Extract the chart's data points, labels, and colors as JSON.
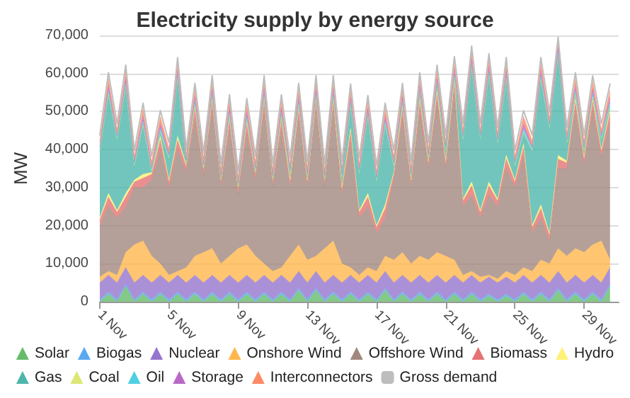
{
  "chart_data": {
    "type": "area",
    "title": "Electricity supply by energy source",
    "ylabel": "MW",
    "stacked": true,
    "grid": "y",
    "legend": "bottom",
    "marker": "none",
    "ylim": [
      0,
      70000
    ],
    "yticks": [
      0,
      {
        "value": 10000,
        "label": "10,000"
      },
      {
        "value": 20000,
        "label": "20,000"
      },
      {
        "value": 30000,
        "label": "30,000"
      },
      {
        "value": 40000,
        "label": "40,000"
      },
      {
        "value": 50000,
        "label": "50,000"
      },
      {
        "value": 60000,
        "label": "60,000"
      },
      {
        "value": 70000,
        "label": "70,000"
      }
    ],
    "xlim": [
      "--11-01",
      "--12-01"
    ],
    "xticks": [
      {
        "value": "--11-01",
        "label": "1 Nov"
      },
      {
        "value": "--11-05",
        "label": "5 Nov"
      },
      {
        "value": "--11-09",
        "label": "9 Nov"
      },
      {
        "value": "--11-13",
        "label": "13 Nov"
      },
      {
        "value": "--11-17",
        "label": "17 Nov"
      },
      {
        "value": "--11-21",
        "label": "21 Nov"
      },
      {
        "value": "--11-25",
        "label": "25 Nov"
      },
      {
        "value": "--11-29",
        "label": "29 Nov"
      }
    ],
    "x": [
      "--11-01T00:00",
      "--11-01T12:00",
      "--11-02T00:00",
      "--11-02T12:00",
      "--11-03T00:00",
      "--11-03T12:00",
      "--11-04T00:00",
      "--11-04T12:00",
      "--11-05T00:00",
      "--11-05T12:00",
      "--11-06T00:00",
      "--11-06T12:00",
      "--11-07T00:00",
      "--11-07T12:00",
      "--11-08T00:00",
      "--11-08T12:00",
      "--11-09T00:00",
      "--11-09T12:00",
      "--11-10T00:00",
      "--11-10T12:00",
      "--11-11T00:00",
      "--11-11T12:00",
      "--11-12T00:00",
      "--11-12T12:00",
      "--11-13T00:00",
      "--11-13T12:00",
      "--11-14T00:00",
      "--11-14T12:00",
      "--11-15T00:00",
      "--11-15T12:00",
      "--11-16T00:00",
      "--11-16T12:00",
      "--11-17T00:00",
      "--11-17T12:00",
      "--11-18T00:00",
      "--11-18T12:00",
      "--11-19T00:00",
      "--11-19T12:00",
      "--11-20T00:00",
      "--11-20T12:00",
      "--11-21T00:00",
      "--11-21T12:00",
      "--11-22T00:00",
      "--11-22T12:00",
      "--11-23T00:00",
      "--11-23T12:00",
      "--11-24T00:00",
      "--11-24T12:00",
      "--11-25T00:00",
      "--11-25T12:00",
      "--11-26T00:00",
      "--11-26T12:00",
      "--11-27T00:00",
      "--11-27T12:00",
      "--11-28T00:00",
      "--11-28T12:00",
      "--11-29T00:00",
      "--11-29T12:00",
      "--11-30T00:00",
      "--11-30T12:00"
    ],
    "series": [
      {
        "name": "Solar",
        "color": "#66bb6a",
        "values": [
          0,
          2000,
          0,
          4000,
          0,
          2000,
          0,
          2000,
          0,
          2000,
          0,
          2000,
          0,
          2000,
          0,
          2000,
          0,
          2000,
          0,
          2000,
          0,
          2000,
          0,
          3000,
          0,
          3000,
          0,
          2000,
          0,
          2000,
          0,
          2000,
          0,
          3000,
          0,
          2000,
          0,
          2000,
          0,
          2000,
          0,
          2000,
          0,
          2000,
          0,
          1500,
          0,
          1500,
          0,
          2000,
          0,
          2000,
          0,
          3000,
          0,
          2000,
          0,
          2000,
          0,
          4000
        ]
      },
      {
        "name": "Biogas",
        "color": "#5aa9f0",
        "values": [
          500,
          500,
          500,
          500,
          500,
          500,
          500,
          500,
          500,
          500,
          500,
          500,
          500,
          500,
          500,
          500,
          500,
          500,
          500,
          500,
          500,
          500,
          500,
          500,
          500,
          500,
          500,
          500,
          500,
          500,
          500,
          500,
          500,
          500,
          500,
          500,
          500,
          500,
          500,
          500,
          500,
          500,
          500,
          500,
          500,
          500,
          500,
          500,
          500,
          500,
          500,
          500,
          500,
          500,
          500,
          500,
          500,
          500,
          500,
          500
        ]
      },
      {
        "name": "Nuclear",
        "color": "#9575cd",
        "values": [
          4500,
          4500,
          4500,
          4500,
          4500,
          4500,
          4500,
          4500,
          4500,
          4500,
          4500,
          4500,
          4500,
          4500,
          4500,
          4500,
          4500,
          4500,
          4500,
          4500,
          4500,
          4500,
          4500,
          4500,
          4500,
          4500,
          4500,
          4500,
          4500,
          4500,
          4500,
          4500,
          4500,
          4500,
          4500,
          4500,
          4500,
          4500,
          4500,
          4500,
          4500,
          4500,
          4500,
          4500,
          4500,
          4500,
          4500,
          4500,
          4500,
          4500,
          4500,
          4500,
          4500,
          4500,
          4500,
          4500,
          4500,
          4500,
          4500,
          4500
        ]
      },
      {
        "name": "Onshore Wind",
        "color": "#ffb74d",
        "values": [
          1500,
          1000,
          2000,
          4000,
          10000,
          9000,
          7000,
          3000,
          2000,
          1000,
          4000,
          5000,
          8000,
          7000,
          5000,
          5000,
          9000,
          8000,
          7000,
          3000,
          3000,
          2000,
          7000,
          7000,
          6000,
          4000,
          9000,
          9000,
          5000,
          2000,
          2000,
          2000,
          3000,
          4000,
          6000,
          6000,
          5000,
          5000,
          6000,
          6000,
          7000,
          4000,
          2000,
          1000,
          1500,
          500,
          1000,
          1500,
          2000,
          2000,
          3000,
          4000,
          5000,
          6000,
          7000,
          7000,
          8000,
          8000,
          11000,
          2000
        ]
      },
      {
        "name": "Offshore Wind",
        "color": "#a1887f",
        "values": [
          13500,
          17000,
          15000,
          12000,
          15000,
          14000,
          20000,
          30000,
          23000,
          32000,
          25000,
          36000,
          20000,
          36000,
          20000,
          33000,
          14000,
          29000,
          20000,
          40000,
          22000,
          36000,
          18000,
          33000,
          19000,
          38000,
          16000,
          34000,
          18000,
          33000,
          15000,
          16000,
          10000,
          10000,
          21000,
          35000,
          20000,
          38000,
          24000,
          39000,
          23000,
          44000,
          18000,
          20000,
          15500,
          21000,
          19000,
          27000,
          23000,
          29000,
          10000,
          11000,
          6000,
          21000,
          23000,
          36000,
          23000,
          35000,
          22000,
          36000
        ]
      },
      {
        "name": "Biomass",
        "color": "#e57373",
        "values": [
          1500,
          2500,
          1500,
          2500,
          1500,
          2500,
          1500,
          2500,
          1500,
          2500,
          1500,
          2500,
          1500,
          2500,
          1500,
          2500,
          1500,
          2500,
          1500,
          2500,
          1500,
          2500,
          1500,
          2500,
          1500,
          2500,
          1500,
          2500,
          1500,
          2500,
          1500,
          2500,
          1500,
          2500,
          1500,
          2500,
          1500,
          2500,
          1500,
          2500,
          1500,
          2500,
          1500,
          2500,
          1500,
          2500,
          1500,
          2500,
          1500,
          2500,
          1500,
          2500,
          1500,
          2500,
          1500,
          2500,
          1500,
          2500,
          1500,
          2500
        ]
      },
      {
        "name": "Hydro",
        "color": "#fff176",
        "values": [
          500,
          1000,
          500,
          1000,
          500,
          1000,
          500,
          1000,
          500,
          1000,
          500,
          1000,
          500,
          1000,
          500,
          1000,
          500,
          1000,
          500,
          1000,
          500,
          1000,
          500,
          1000,
          500,
          1000,
          500,
          1000,
          500,
          1000,
          500,
          1000,
          500,
          1000,
          500,
          1000,
          500,
          1000,
          500,
          1000,
          500,
          1000,
          500,
          1000,
          500,
          1000,
          500,
          1000,
          500,
          1000,
          500,
          1000,
          500,
          1000,
          500,
          1000,
          500,
          1000,
          500,
          1000
        ]
      },
      {
        "name": "Gas",
        "color": "#4db6ac",
        "values": [
          17500,
          25800,
          18500,
          27800,
          3500,
          12800,
          0,
          800,
          5500,
          14800,
          0,
          0,
          0,
          0,
          0,
          0,
          0,
          0,
          0,
          0,
          0,
          0,
          1500,
          0,
          500,
          0,
          0,
          0,
          2500,
          5800,
          9500,
          19800,
          11500,
          20800,
          1500,
          0,
          500,
          800,
          500,
          800,
          2500,
          0,
          15500,
          29800,
          18500,
          27800,
          14500,
          19800,
          3500,
          2800,
          19500,
          32800,
          27500,
          25800,
          4500,
          800,
          1500,
          0,
          2500,
          800
        ]
      },
      {
        "name": "Coal",
        "color": "#dce775",
        "values": [
          200,
          200,
          200,
          200,
          200,
          200,
          200,
          200,
          200,
          200,
          200,
          200,
          200,
          200,
          200,
          200,
          200,
          200,
          200,
          200,
          200,
          200,
          200,
          200,
          200,
          200,
          200,
          200,
          200,
          200,
          200,
          200,
          200,
          200,
          200,
          200,
          200,
          200,
          200,
          200,
          200,
          200,
          200,
          200,
          200,
          200,
          200,
          200,
          200,
          200,
          200,
          200,
          200,
          200,
          200,
          200,
          200,
          200,
          200,
          200
        ]
      },
      {
        "name": "Oil",
        "color": "#4dd0e1",
        "values": [
          600,
          1000,
          600,
          1000,
          600,
          1000,
          600,
          1000,
          600,
          1000,
          600,
          1000,
          600,
          1000,
          600,
          1000,
          600,
          1000,
          600,
          1000,
          600,
          1000,
          600,
          1000,
          600,
          1000,
          600,
          1000,
          600,
          1000,
          600,
          1000,
          600,
          1000,
          600,
          1000,
          600,
          1000,
          600,
          1000,
          600,
          1000,
          600,
          1000,
          600,
          1000,
          600,
          1000,
          600,
          1000,
          600,
          1000,
          600,
          1000,
          600,
          1000,
          600,
          1000,
          600,
          1000
        ]
      },
      {
        "name": "Storage",
        "color": "#ba68c8",
        "values": [
          500,
          1200,
          500,
          1200,
          500,
          1200,
          500,
          1200,
          500,
          1200,
          500,
          1200,
          500,
          1200,
          500,
          1200,
          500,
          1200,
          500,
          1200,
          500,
          1200,
          500,
          1200,
          500,
          1200,
          500,
          1200,
          500,
          1200,
          500,
          1200,
          500,
          1200,
          500,
          1200,
          500,
          1200,
          500,
          1200,
          500,
          1200,
          500,
          1200,
          500,
          1200,
          500,
          1200,
          500,
          1200,
          500,
          1200,
          500,
          1200,
          500,
          1200,
          500,
          1200,
          500,
          1200
        ]
      },
      {
        "name": "Interconnectors",
        "color": "#ff8a65",
        "values": [
          1500,
          2000,
          1500,
          2000,
          1500,
          2000,
          1500,
          2000,
          1500,
          2000,
          1500,
          2000,
          1500,
          2000,
          1500,
          2000,
          1500,
          2000,
          1500,
          2000,
          1500,
          2000,
          1500,
          2000,
          1500,
          2000,
          1500,
          2000,
          1500,
          2000,
          1500,
          2000,
          1500,
          2000,
          1500,
          2000,
          1500,
          2000,
          1500,
          2000,
          1500,
          2000,
          1500,
          2000,
          1500,
          2000,
          1500,
          2000,
          1500,
          2000,
          1500,
          2000,
          1500,
          2000,
          1500,
          2000,
          1500,
          2000,
          1500,
          2000
        ]
      },
      {
        "name": "Gross demand",
        "type": "line",
        "color": "#bdbdbd",
        "values": [
          43800,
          60200,
          46800,
          62200,
          39800,
          52200,
          38300,
          50200,
          41800,
          64200,
          40300,
          57400,
          39300,
          59400,
          36300,
          54400,
          34300,
          53400,
          38300,
          59400,
          36300,
          54400,
          37800,
          57400,
          36800,
          59400,
          36300,
          59400,
          36800,
          57200,
          37800,
          54200,
          35800,
          52200,
          39800,
          57400,
          36800,
          60200,
          41800,
          62200,
          43800,
          64400,
          46800,
          67200,
          46800,
          65200,
          45800,
          64200,
          39800,
          50200,
          43800,
          64200,
          49800,
          69500,
          45800,
          60200,
          43800,
          59400,
          46800,
          57200
        ]
      }
    ]
  }
}
